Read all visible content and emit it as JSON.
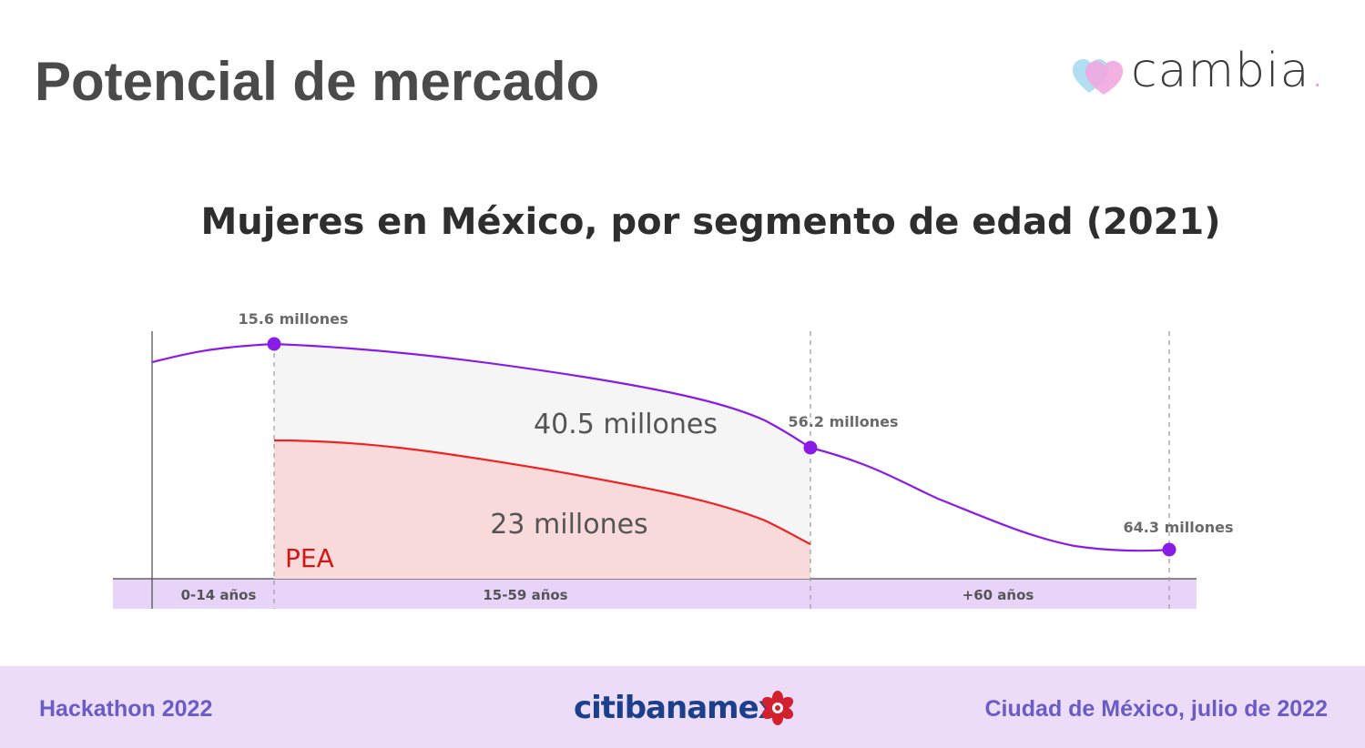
{
  "slide": {
    "title": "Potencial de mercado"
  },
  "brand": {
    "logo_text": "cambia",
    "logo_dot": ".",
    "heart_colors": [
      "#a9dbef",
      "#f2a9e0"
    ]
  },
  "footer": {
    "left_text": "Hackathon 2022",
    "right_text": "Ciudad de México, julio de 2022",
    "sponsor_text": "citibanamex",
    "background": "#ecdcf8",
    "text_color": "#6a5cc4"
  },
  "chart_data": {
    "type": "area",
    "title": "Mujeres en México, por segmento de edad (2021)",
    "segments": [
      "0-14 años",
      "15-59 años",
      "+60 años"
    ],
    "markers": [
      {
        "label": "15.6 millones"
      },
      {
        "label": "56.2 millones"
      },
      {
        "label": "64.3 millones"
      }
    ],
    "areas": [
      {
        "label": "40.5 millones"
      },
      {
        "label": "23 millones"
      }
    ],
    "pea_label": "PEA",
    "colors": {
      "total_line": "#8a1be6",
      "total_fill": "#f5f5f5",
      "pea_line": "#f02222",
      "pea_fill": "#f8dada",
      "pea_text": "#d41616",
      "axis_band": "#e7d4f8"
    }
  }
}
